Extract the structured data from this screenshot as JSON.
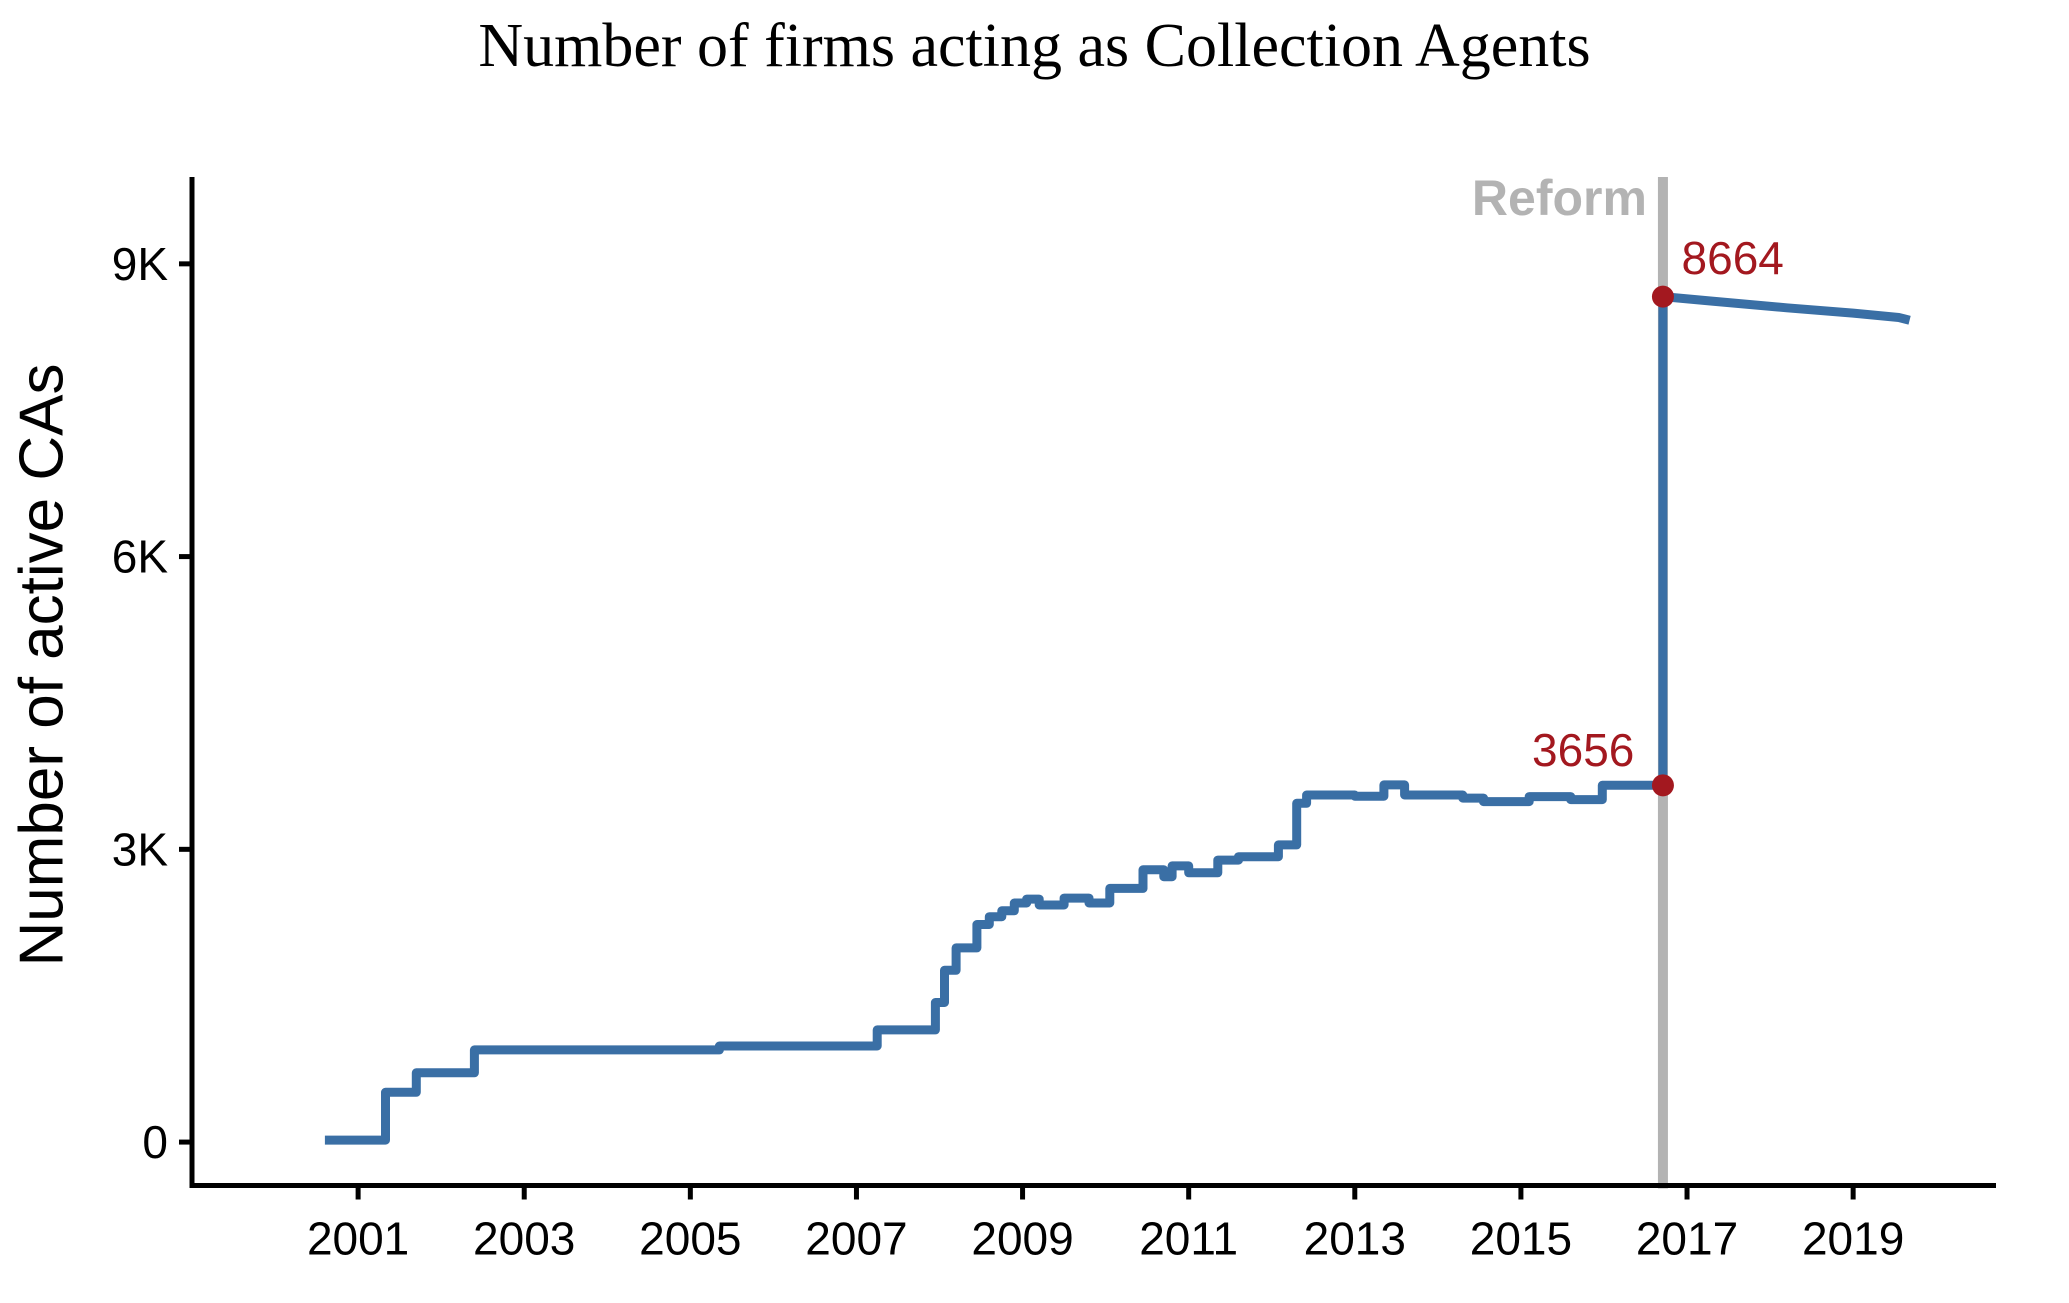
{
  "chart_data": {
    "type": "line",
    "subtype": "step",
    "title": "Number of firms acting as Collection Agents",
    "ylabel": "Number of active CAs",
    "xlabel": "",
    "xlim": [
      1999.0,
      2020.72
    ],
    "ylim": [
      -445,
      9890
    ],
    "grid": false,
    "legend": "none",
    "colors": {
      "line": "#3a6fa5",
      "annotation": "#a3181f",
      "reform_line": "#b3b3b3",
      "axis": "#000000"
    },
    "x_ticks": [
      {
        "v": 2001,
        "label": "2001"
      },
      {
        "v": 2003,
        "label": "2003"
      },
      {
        "v": 2005,
        "label": "2005"
      },
      {
        "v": 2007,
        "label": "2007"
      },
      {
        "v": 2009,
        "label": "2009"
      },
      {
        "v": 2011,
        "label": "2011"
      },
      {
        "v": 2013,
        "label": "2013"
      },
      {
        "v": 2015,
        "label": "2015"
      },
      {
        "v": 2017,
        "label": "2017"
      },
      {
        "v": 2019,
        "label": "2019"
      }
    ],
    "y_ticks": [
      {
        "v": 0,
        "label": "0"
      },
      {
        "v": 3000,
        "label": "3K"
      },
      {
        "v": 6000,
        "label": "6K"
      },
      {
        "v": 9000,
        "label": "9K"
      }
    ],
    "series": [
      {
        "name": "active-CAs-pre-reform",
        "mode": "step",
        "points": [
          [
            2000.6,
            20
          ],
          [
            2001.33,
            510
          ],
          [
            2001.7,
            710
          ],
          [
            2002.4,
            945
          ],
          [
            2005.35,
            985
          ],
          [
            2007.25,
            1150
          ],
          [
            2007.95,
            1430
          ],
          [
            2008.06,
            1760
          ],
          [
            2008.2,
            1990
          ],
          [
            2008.45,
            2230
          ],
          [
            2008.6,
            2310
          ],
          [
            2008.75,
            2370
          ],
          [
            2008.9,
            2450
          ],
          [
            2009.05,
            2490
          ],
          [
            2009.2,
            2430
          ],
          [
            2009.5,
            2500
          ],
          [
            2009.8,
            2450
          ],
          [
            2010.05,
            2600
          ],
          [
            2010.45,
            2790
          ],
          [
            2010.7,
            2720
          ],
          [
            2010.8,
            2830
          ],
          [
            2011.0,
            2760
          ],
          [
            2011.35,
            2890
          ],
          [
            2011.6,
            2925
          ],
          [
            2012.08,
            3045
          ],
          [
            2012.3,
            3472
          ],
          [
            2012.42,
            3557
          ],
          [
            2013.0,
            3545
          ],
          [
            2013.35,
            3660
          ],
          [
            2013.6,
            3557
          ],
          [
            2014.3,
            3525
          ],
          [
            2014.55,
            3489
          ],
          [
            2015.1,
            3540
          ],
          [
            2015.6,
            3510
          ],
          [
            2015.98,
            3656
          ],
          [
            2016.71,
            3656
          ]
        ]
      },
      {
        "name": "active-CAs-post-reform",
        "mode": "linear",
        "points": [
          [
            2016.71,
            3656
          ],
          [
            2016.71,
            8664
          ],
          [
            2017.3,
            8618
          ],
          [
            2018.2,
            8550
          ],
          [
            2019.0,
            8495
          ],
          [
            2019.55,
            8450
          ],
          [
            2019.68,
            8422
          ]
        ]
      }
    ],
    "reform_line": {
      "year": 2016.71,
      "label": "Reform"
    },
    "markers": [
      {
        "year": 2016.71,
        "value": 3656
      },
      {
        "year": 2016.71,
        "value": 8664
      }
    ],
    "annotations": [
      {
        "text": "3656",
        "year": 2015.75,
        "value": 4020
      },
      {
        "text": "8664",
        "year": 2017.55,
        "value": 9060
      }
    ]
  }
}
